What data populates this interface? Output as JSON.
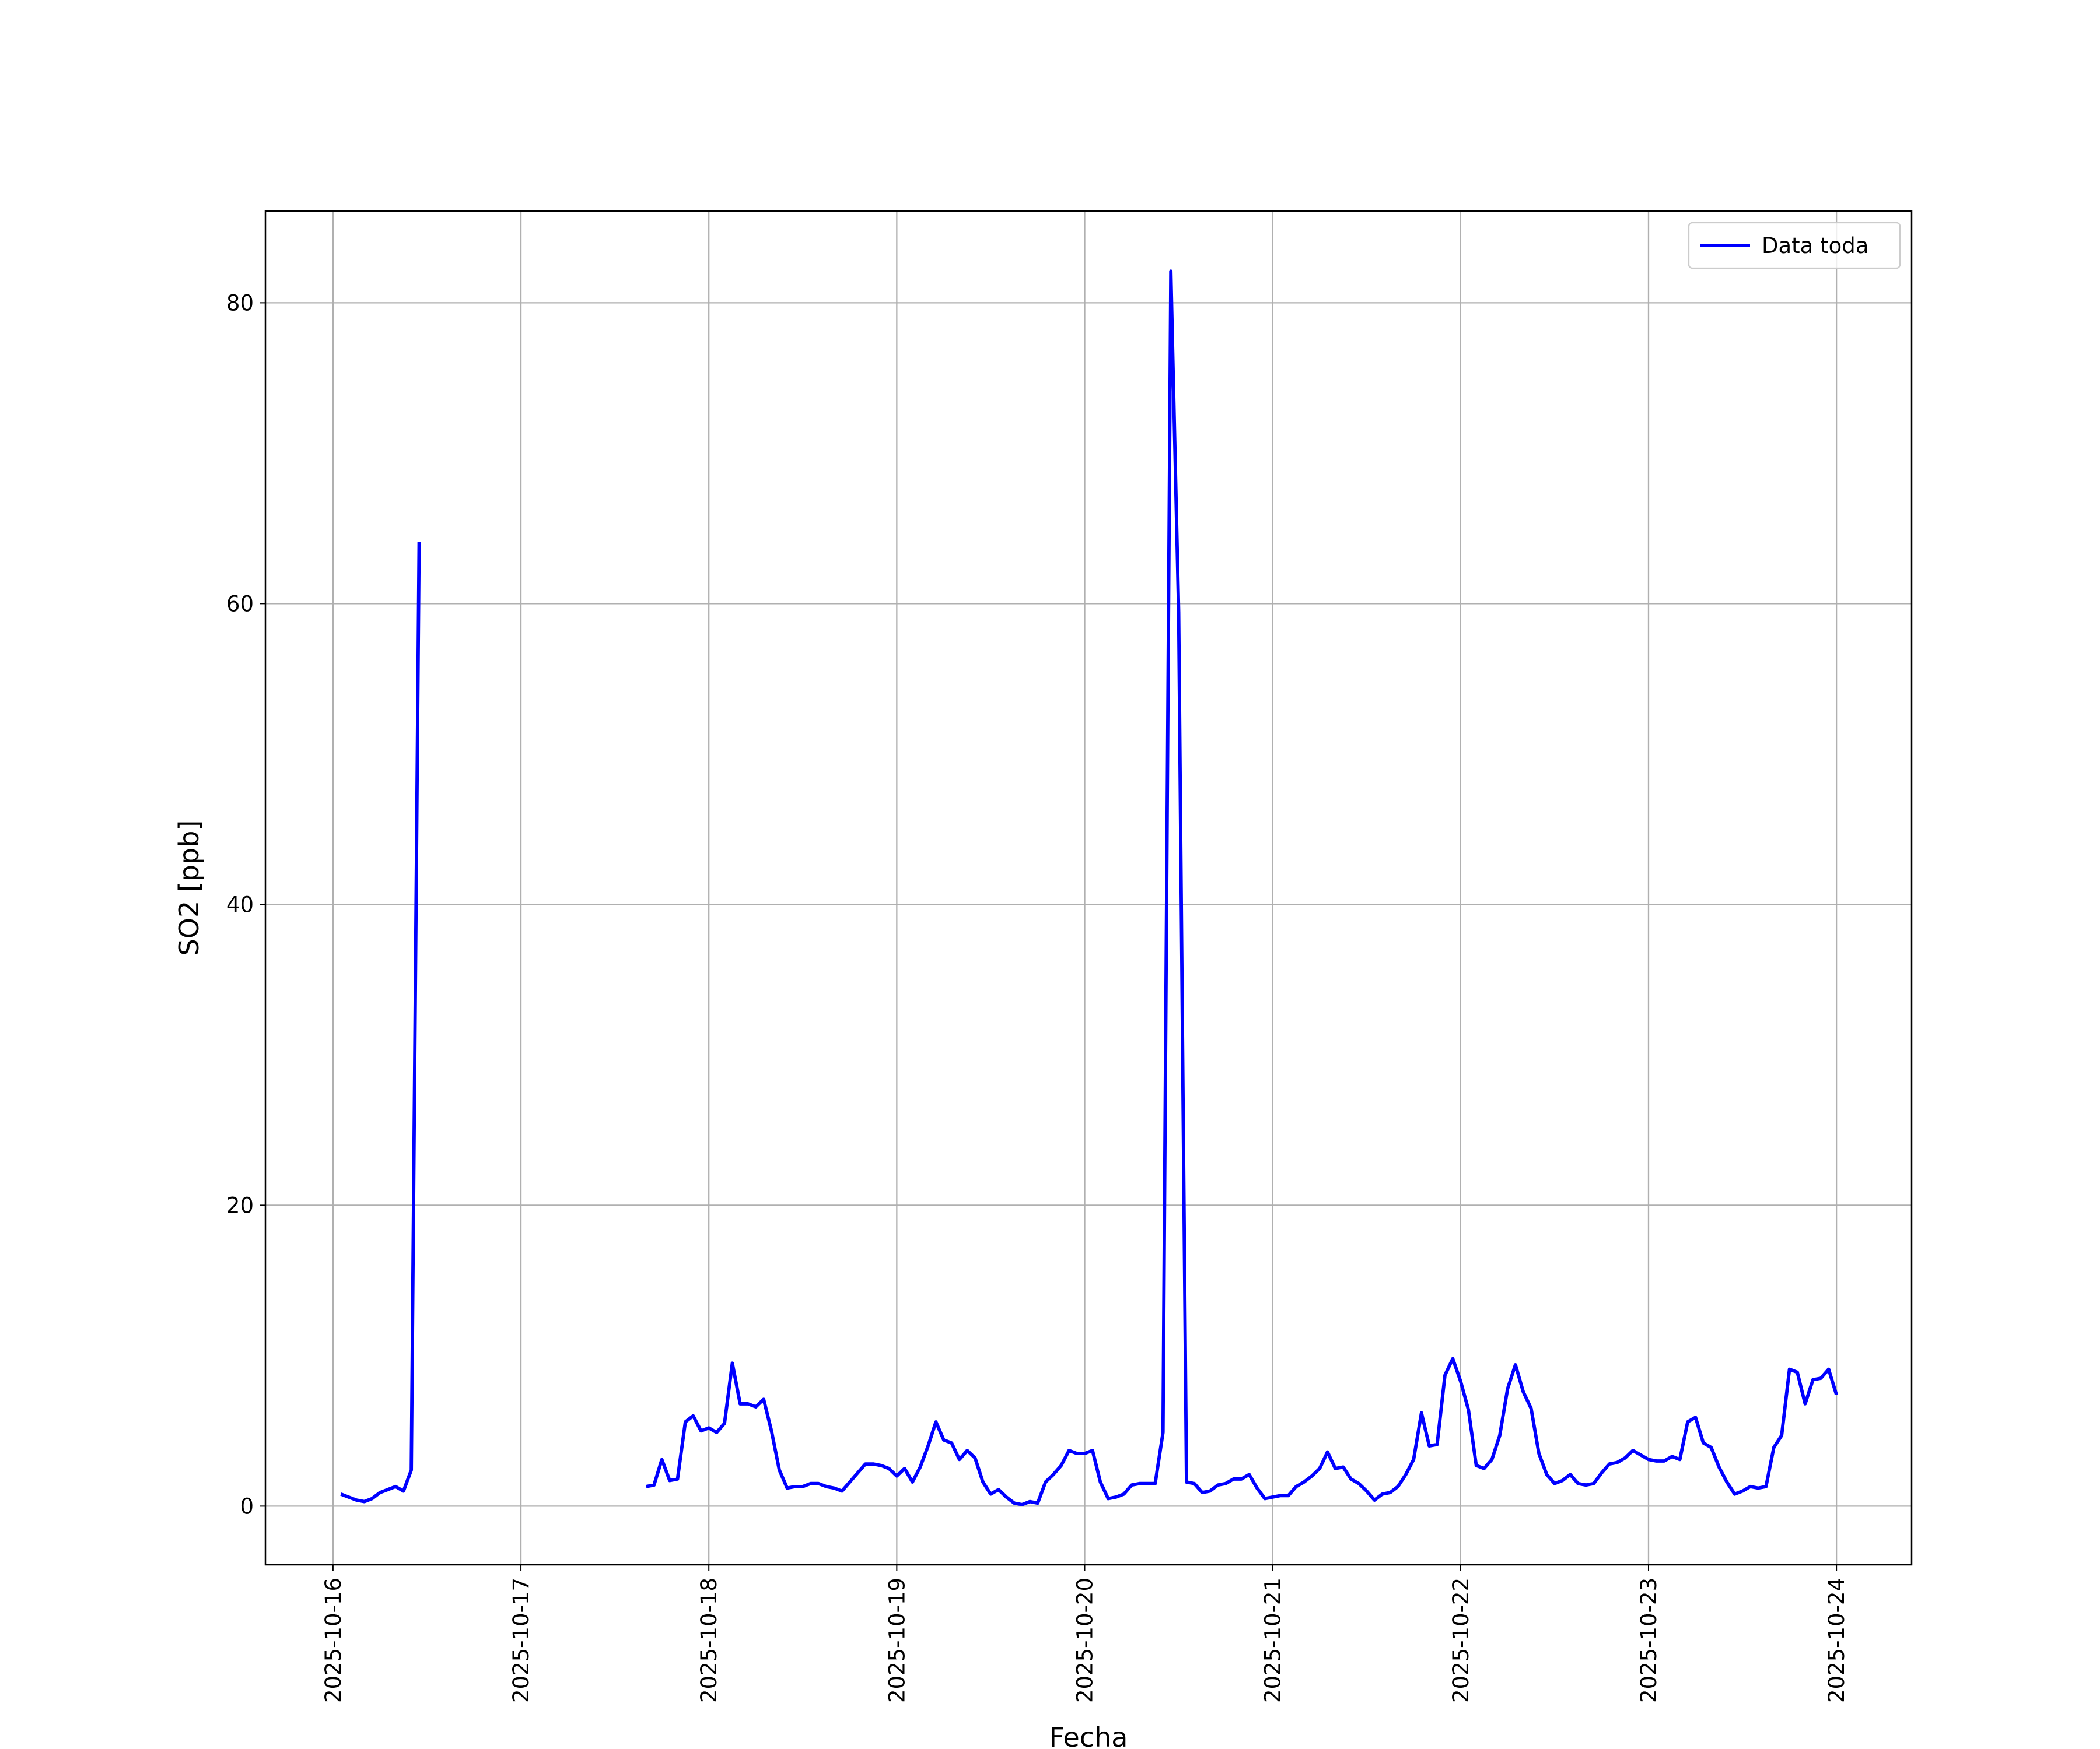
{
  "chart_data": {
    "type": "line",
    "xlabel": "Fecha",
    "ylabel": "SO2 [ppb]",
    "x": [
      "2025-10-16T01:00",
      "2025-10-16T02:00",
      "2025-10-16T03:00",
      "2025-10-16T04:00",
      "2025-10-16T05:00",
      "2025-10-16T06:00",
      "2025-10-16T07:00",
      "2025-10-16T08:00",
      "2025-10-16T09:00",
      "2025-10-16T10:00",
      "2025-10-16T11:00",
      "2025-10-16T12:00",
      "2025-10-17T16:00",
      "2025-10-17T17:00",
      "2025-10-17T18:00",
      "2025-10-17T19:00",
      "2025-10-17T20:00",
      "2025-10-17T21:00",
      "2025-10-17T22:00",
      "2025-10-17T23:00",
      "2025-10-18T00:00",
      "2025-10-18T01:00",
      "2025-10-18T02:00",
      "2025-10-18T03:00",
      "2025-10-18T04:00",
      "2025-10-18T05:00",
      "2025-10-18T06:00",
      "2025-10-18T07:00",
      "2025-10-18T08:00",
      "2025-10-18T09:00",
      "2025-10-18T10:00",
      "2025-10-18T11:00",
      "2025-10-18T12:00",
      "2025-10-18T13:00",
      "2025-10-18T14:00",
      "2025-10-18T15:00",
      "2025-10-18T16:00",
      "2025-10-18T17:00",
      "2025-10-18T18:00",
      "2025-10-18T19:00",
      "2025-10-18T20:00",
      "2025-10-18T21:00",
      "2025-10-18T22:00",
      "2025-10-18T23:00",
      "2025-10-19T00:00",
      "2025-10-19T01:00",
      "2025-10-19T02:00",
      "2025-10-19T03:00",
      "2025-10-19T04:00",
      "2025-10-19T05:00",
      "2025-10-19T06:00",
      "2025-10-19T07:00",
      "2025-10-19T08:00",
      "2025-10-19T09:00",
      "2025-10-19T10:00",
      "2025-10-19T11:00",
      "2025-10-19T12:00",
      "2025-10-19T13:00",
      "2025-10-19T14:00",
      "2025-10-19T15:00",
      "2025-10-19T16:00",
      "2025-10-19T17:00",
      "2025-10-19T18:00",
      "2025-10-19T19:00",
      "2025-10-19T20:00",
      "2025-10-19T21:00",
      "2025-10-19T22:00",
      "2025-10-19T23:00",
      "2025-10-20T00:00",
      "2025-10-20T01:00",
      "2025-10-20T02:00",
      "2025-10-20T03:00",
      "2025-10-20T04:00",
      "2025-10-20T05:00",
      "2025-10-20T06:00",
      "2025-10-20T07:00",
      "2025-10-20T08:00",
      "2025-10-20T09:00",
      "2025-10-20T10:00",
      "2025-10-20T11:00",
      "2025-10-20T12:00",
      "2025-10-20T13:00",
      "2025-10-20T14:00",
      "2025-10-20T15:00",
      "2025-10-20T16:00",
      "2025-10-20T17:00",
      "2025-10-20T18:00",
      "2025-10-20T19:00",
      "2025-10-20T20:00",
      "2025-10-20T21:00",
      "2025-10-20T22:00",
      "2025-10-20T23:00",
      "2025-10-21T00:00",
      "2025-10-21T01:00",
      "2025-10-21T02:00",
      "2025-10-21T03:00",
      "2025-10-21T04:00",
      "2025-10-21T05:00",
      "2025-10-21T06:00",
      "2025-10-21T07:00",
      "2025-10-21T08:00",
      "2025-10-21T09:00",
      "2025-10-21T10:00",
      "2025-10-21T11:00",
      "2025-10-21T12:00",
      "2025-10-21T13:00",
      "2025-10-21T14:00",
      "2025-10-21T15:00",
      "2025-10-21T16:00",
      "2025-10-21T17:00",
      "2025-10-21T18:00",
      "2025-10-21T19:00",
      "2025-10-21T20:00",
      "2025-10-21T21:00",
      "2025-10-21T22:00",
      "2025-10-21T23:00",
      "2025-10-22T00:00",
      "2025-10-22T01:00",
      "2025-10-22T02:00",
      "2025-10-22T03:00",
      "2025-10-22T04:00",
      "2025-10-22T05:00",
      "2025-10-22T06:00",
      "2025-10-22T07:00",
      "2025-10-22T08:00",
      "2025-10-22T09:00",
      "2025-10-22T10:00",
      "2025-10-22T11:00",
      "2025-10-22T12:00",
      "2025-10-22T13:00",
      "2025-10-22T14:00",
      "2025-10-22T15:00",
      "2025-10-22T16:00",
      "2025-10-22T17:00",
      "2025-10-22T18:00",
      "2025-10-22T19:00",
      "2025-10-22T20:00",
      "2025-10-22T21:00",
      "2025-10-22T22:00",
      "2025-10-22T23:00",
      "2025-10-23T00:00",
      "2025-10-23T01:00",
      "2025-10-23T02:00",
      "2025-10-23T03:00",
      "2025-10-23T04:00",
      "2025-10-23T05:00",
      "2025-10-23T06:00",
      "2025-10-23T07:00",
      "2025-10-23T08:00",
      "2025-10-23T09:00",
      "2025-10-23T10:00",
      "2025-10-23T11:00",
      "2025-10-23T12:00",
      "2025-10-23T13:00",
      "2025-10-23T14:00",
      "2025-10-23T15:00",
      "2025-10-23T16:00",
      "2025-10-23T17:00",
      "2025-10-23T18:00",
      "2025-10-23T19:00",
      "2025-10-23T20:00",
      "2025-10-23T21:00",
      "2025-10-23T22:00",
      "2025-10-23T23:00",
      "2025-10-24T00:00"
    ],
    "series": [
      {
        "name": "Data toda",
        "color": "#0000ff",
        "values": [
          0.8,
          0.6,
          0.4,
          0.3,
          0.5,
          0.9,
          1.1,
          1.3,
          1.0,
          2.4,
          64.1,
          null,
          1.3,
          1.4,
          3.1,
          1.7,
          1.8,
          5.6,
          6.0,
          5.0,
          5.2,
          4.9,
          5.5,
          9.5,
          6.8,
          6.8,
          6.6,
          7.1,
          5.0,
          2.4,
          1.2,
          1.3,
          1.3,
          1.5,
          1.5,
          1.3,
          1.2,
          1.0,
          1.6,
          2.2,
          2.8,
          2.8,
          2.7,
          2.5,
          2.0,
          2.5,
          1.6,
          2.6,
          4.0,
          5.6,
          4.4,
          4.2,
          3.1,
          3.7,
          3.2,
          1.6,
          0.8,
          1.1,
          0.6,
          0.2,
          0.1,
          0.3,
          0.2,
          1.6,
          2.1,
          2.7,
          3.7,
          3.5,
          3.5,
          3.7,
          1.6,
          0.5,
          0.6,
          0.8,
          1.4,
          1.5,
          1.5,
          1.5,
          4.9,
          82.1,
          59.4,
          1.6,
          1.5,
          0.9,
          1.0,
          1.4,
          1.5,
          1.8,
          1.8,
          2.1,
          1.2,
          0.5,
          0.6,
          0.7,
          0.7,
          1.3,
          1.6,
          2.0,
          2.5,
          3.6,
          2.5,
          2.6,
          1.8,
          1.5,
          1.0,
          0.4,
          0.8,
          0.9,
          1.3,
          2.1,
          3.1,
          6.2,
          4.0,
          4.1,
          8.7,
          9.8,
          8.3,
          6.4,
          2.7,
          2.5,
          3.1,
          4.7,
          7.8,
          9.4,
          7.6,
          6.5,
          3.5,
          2.1,
          1.5,
          1.7,
          2.1,
          1.5,
          1.4,
          1.5,
          2.2,
          2.8,
          2.9,
          3.2,
          3.7,
          3.4,
          3.1,
          3.0,
          3.0,
          3.3,
          3.1,
          5.6,
          5.9,
          4.2,
          3.9,
          2.6,
          1.6,
          0.8,
          1.0,
          1.3,
          1.2,
          1.3,
          3.9,
          4.7,
          9.1,
          8.9,
          6.8,
          8.4,
          8.5,
          9.1,
          7.4
        ]
      }
    ],
    "xlim": [
      "2025-10-15T15:22",
      "2025-10-24T09:36"
    ],
    "xticks": [
      {
        "value": "2025-10-16T00:00",
        "label": "2025-10-16"
      },
      {
        "value": "2025-10-17T00:00",
        "label": "2025-10-17"
      },
      {
        "value": "2025-10-18T00:00",
        "label": "2025-10-18"
      },
      {
        "value": "2025-10-19T00:00",
        "label": "2025-10-19"
      },
      {
        "value": "2025-10-20T00:00",
        "label": "2025-10-20"
      },
      {
        "value": "2025-10-21T00:00",
        "label": "2025-10-21"
      },
      {
        "value": "2025-10-22T00:00",
        "label": "2025-10-22"
      },
      {
        "value": "2025-10-23T00:00",
        "label": "2025-10-23"
      },
      {
        "value": "2025-10-24T00:00",
        "label": "2025-10-24"
      }
    ],
    "ylim": [
      -3.9,
      86.1
    ],
    "yticks": [
      0,
      20,
      40,
      60,
      80
    ],
    "grid": true,
    "legend": "upper right"
  }
}
